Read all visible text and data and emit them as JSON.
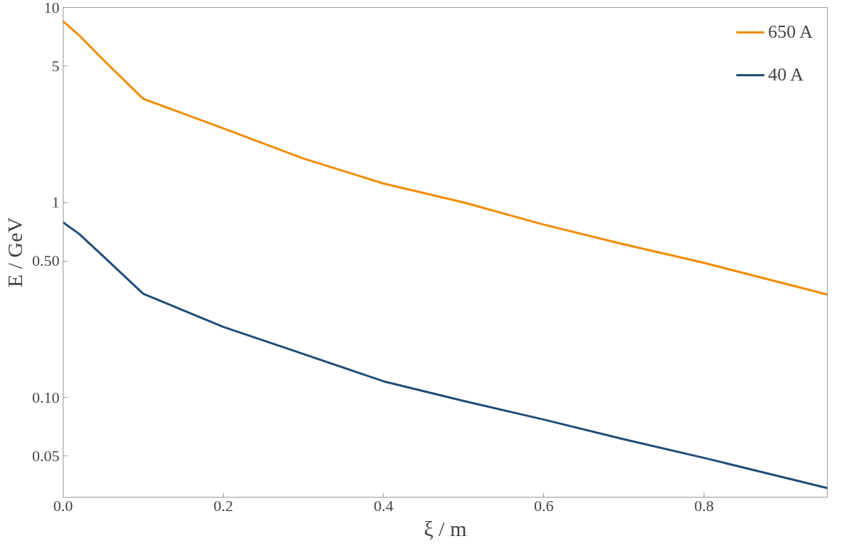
{
  "chart_data": {
    "type": "line",
    "xlabel": "ξ / m",
    "ylabel": "E / GeV",
    "log": "y",
    "xlim": [
      0,
      0.954
    ],
    "ylim": [
      0.0308,
      10
    ],
    "xticks": [
      {
        "value": 0,
        "label": "0.0"
      },
      0.2,
      0.4,
      0.6,
      0.8
    ],
    "yticks": [
      0.05,
      {
        "value": 0.1,
        "label": "0.10"
      },
      {
        "value": 0.5,
        "label": "0.50"
      },
      1,
      5,
      10
    ],
    "x": [
      0,
      0.02,
      0.05,
      0.1,
      0.2,
      0.3,
      0.4,
      0.5,
      0.6,
      0.7,
      0.8,
      0.954
    ],
    "series": [
      {
        "name": "650 A",
        "color": "#f08c00",
        "values": [
          8.5,
          7.2,
          5.4,
          3.4,
          2.4,
          1.68,
          1.25,
          1.0,
          0.77,
          0.61,
          0.49,
          0.337
        ]
      },
      {
        "name": "40 A",
        "color": "#204d78",
        "values": [
          0.79,
          0.69,
          0.53,
          0.34,
          0.23,
          0.167,
          0.121,
          0.096,
          0.077,
          0.061,
          0.049,
          0.0343
        ]
      }
    ],
    "legend": "top right",
    "grid": false,
    "marker": "none",
    "line_style": "solid"
  }
}
